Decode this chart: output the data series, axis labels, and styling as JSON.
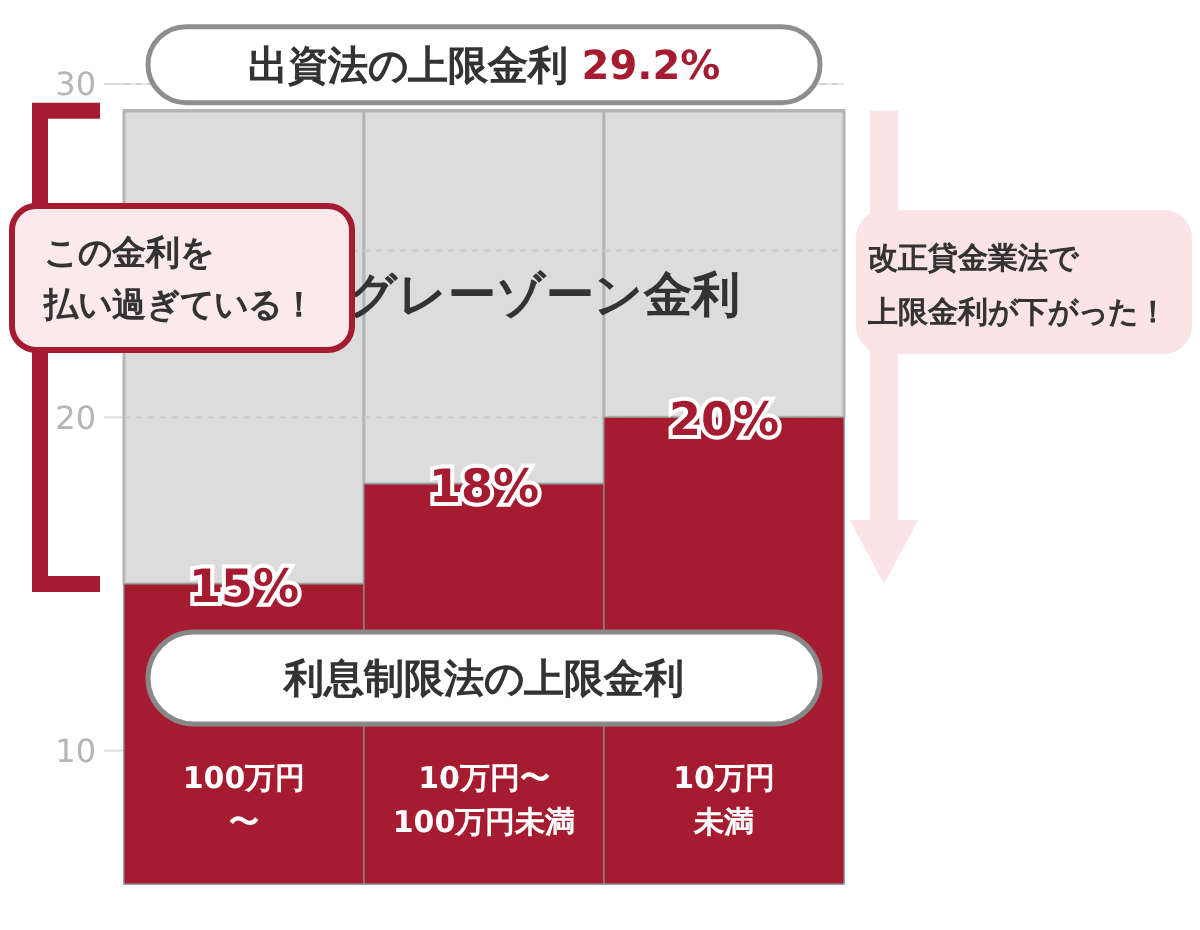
{
  "chart_data": {
    "type": "bar",
    "stacked": true,
    "categories": [
      "100万円〜",
      "10万円〜100万円未満",
      "10万円未満"
    ],
    "series": [
      {
        "name": "利息制限法の上限金利",
        "color": "#a51c30",
        "values": [
          15,
          18,
          20
        ],
        "value_labels": [
          "15%",
          "18%",
          "20%"
        ]
      },
      {
        "name": "グレーゾーン金利",
        "color": "#dcdcdc",
        "values": [
          14.2,
          11.2,
          9.2
        ]
      }
    ],
    "ylim": [
      6,
      30
    ],
    "yticks": [
      10,
      20,
      {
        "value": 25,
        "label": null
      },
      30
    ],
    "grid": "y",
    "ref_lines": [
      {
        "axis": "y",
        "value": 29.2,
        "label": "出資法の上限金利 29.2%"
      }
    ],
    "annotations": [
      "この金利を払い過ぎている！",
      "改正貸金業法で上限金利が下がった！"
    ]
  }
}
